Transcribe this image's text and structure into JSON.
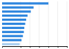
{
  "chart_data": {
    "type": "bar",
    "orientation": "horizontal",
    "categories": [
      null,
      null,
      null,
      null,
      null,
      null,
      null,
      null,
      null,
      null,
      null
    ],
    "values": [
      10.0,
      6.8,
      6.2,
      5.5,
      5.2,
      5.0,
      4.8,
      4.7,
      4.5,
      4.2,
      3.8
    ],
    "colors": [
      "#2e86de",
      "#2e86de",
      "#2e86de",
      "#2e86de",
      "#2e86de",
      "#2e86de",
      "#2e86de",
      "#2e86de",
      "#2e86de",
      "#2e86de",
      "#a8cef0"
    ],
    "xlim": [
      0,
      14
    ],
    "xticks": [
      4,
      6,
      8,
      10,
      12,
      14
    ],
    "grid": true,
    "tick_labels": false
  }
}
